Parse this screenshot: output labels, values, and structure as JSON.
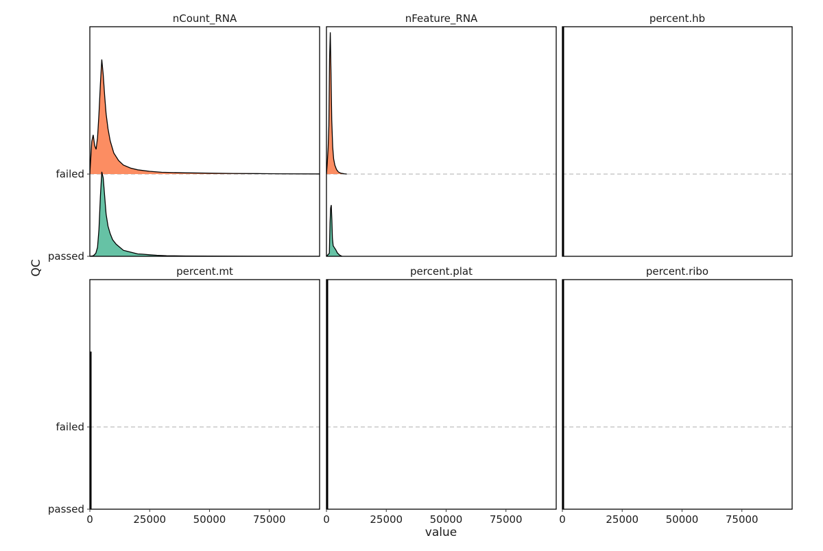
{
  "chart_data": {
    "type": "ridgeline",
    "xlabel": "value",
    "ylabel": "QC",
    "categories": [
      "passed",
      "failed"
    ],
    "x_ticks": [
      0,
      25000,
      50000,
      75000
    ],
    "x_tick_labels": [
      "0",
      "25000",
      "50000",
      "75000"
    ],
    "xlim": [
      0,
      96000
    ],
    "colors": {
      "failed": "#fc8d62",
      "passed": "#66c2a5"
    },
    "grid": false,
    "panels": [
      {
        "title": "nCount_RNA",
        "series": [
          {
            "category": "failed",
            "x": [
              0,
              800,
              1400,
              2000,
              2600,
              3200,
              3800,
              4400,
              5000,
              5600,
              6200,
              6800,
              7600,
              8500,
              10000,
              12000,
              14000,
              17000,
              20000,
              25000,
              30000,
              40000,
              50000,
              60000,
              70000,
              80000,
              96000
            ],
            "y": [
              0,
              1.08,
              1.3,
              0.95,
              0.82,
              1.2,
              2.0,
              3.0,
              3.8,
              3.3,
              2.6,
              2.0,
              1.5,
              1.1,
              0.7,
              0.45,
              0.3,
              0.2,
              0.14,
              0.09,
              0.06,
              0.04,
              0.03,
              0.02,
              0.015,
              0.01,
              0.005
            ]
          },
          {
            "category": "passed",
            "x": [
              0,
              1500,
              2500,
              3200,
              3800,
              4400,
              5000,
              5600,
              6200,
              6800,
              7600,
              8500,
              9500,
              11000,
              12500,
              14000,
              16000,
              18000,
              20000,
              22000,
              25000,
              28000,
              32000,
              40000,
              50000,
              60000,
              70000,
              96000
            ],
            "y": [
              0,
              0.02,
              0.1,
              0.3,
              0.9,
              2.0,
              2.8,
              2.6,
              2.0,
              1.4,
              1.0,
              0.75,
              0.55,
              0.4,
              0.3,
              0.2,
              0.16,
              0.12,
              0.08,
              0.07,
              0.05,
              0.035,
              0.02,
              0.012,
              0.008,
              0.005,
              0.003,
              0
            ]
          }
        ]
      },
      {
        "title": "nFeature_RNA",
        "series": [
          {
            "category": "failed",
            "x": [
              0,
              300,
              700,
              1000,
              1300,
              1600,
              1900,
              2200,
              2600,
              3000,
              3500,
              4200,
              5000,
              6000,
              7500,
              8500
            ],
            "y": [
              0,
              0.3,
              0.85,
              1.6,
              3.8,
              4.7,
              3.4,
              1.8,
              0.9,
              0.5,
              0.3,
              0.15,
              0.07,
              0.03,
              0.01,
              0
            ]
          },
          {
            "category": "passed",
            "x": [
              0,
              1200,
              1500,
              1750,
              2000,
              2250,
              2500,
              2800,
              3200,
              3600,
              4000,
              4500,
              5000,
              5500,
              6000,
              6500
            ],
            "y": [
              0,
              0.1,
              1.1,
              1.6,
              1.7,
              1.2,
              0.6,
              0.35,
              0.3,
              0.25,
              0.2,
              0.12,
              0.08,
              0.04,
              0.02,
              0
            ]
          }
        ]
      },
      {
        "title": "percent.hb",
        "series": []
      },
      {
        "title": "percent.mt",
        "series": []
      },
      {
        "title": "percent.plat",
        "series": []
      },
      {
        "title": "percent.ribo",
        "series": []
      }
    ]
  }
}
